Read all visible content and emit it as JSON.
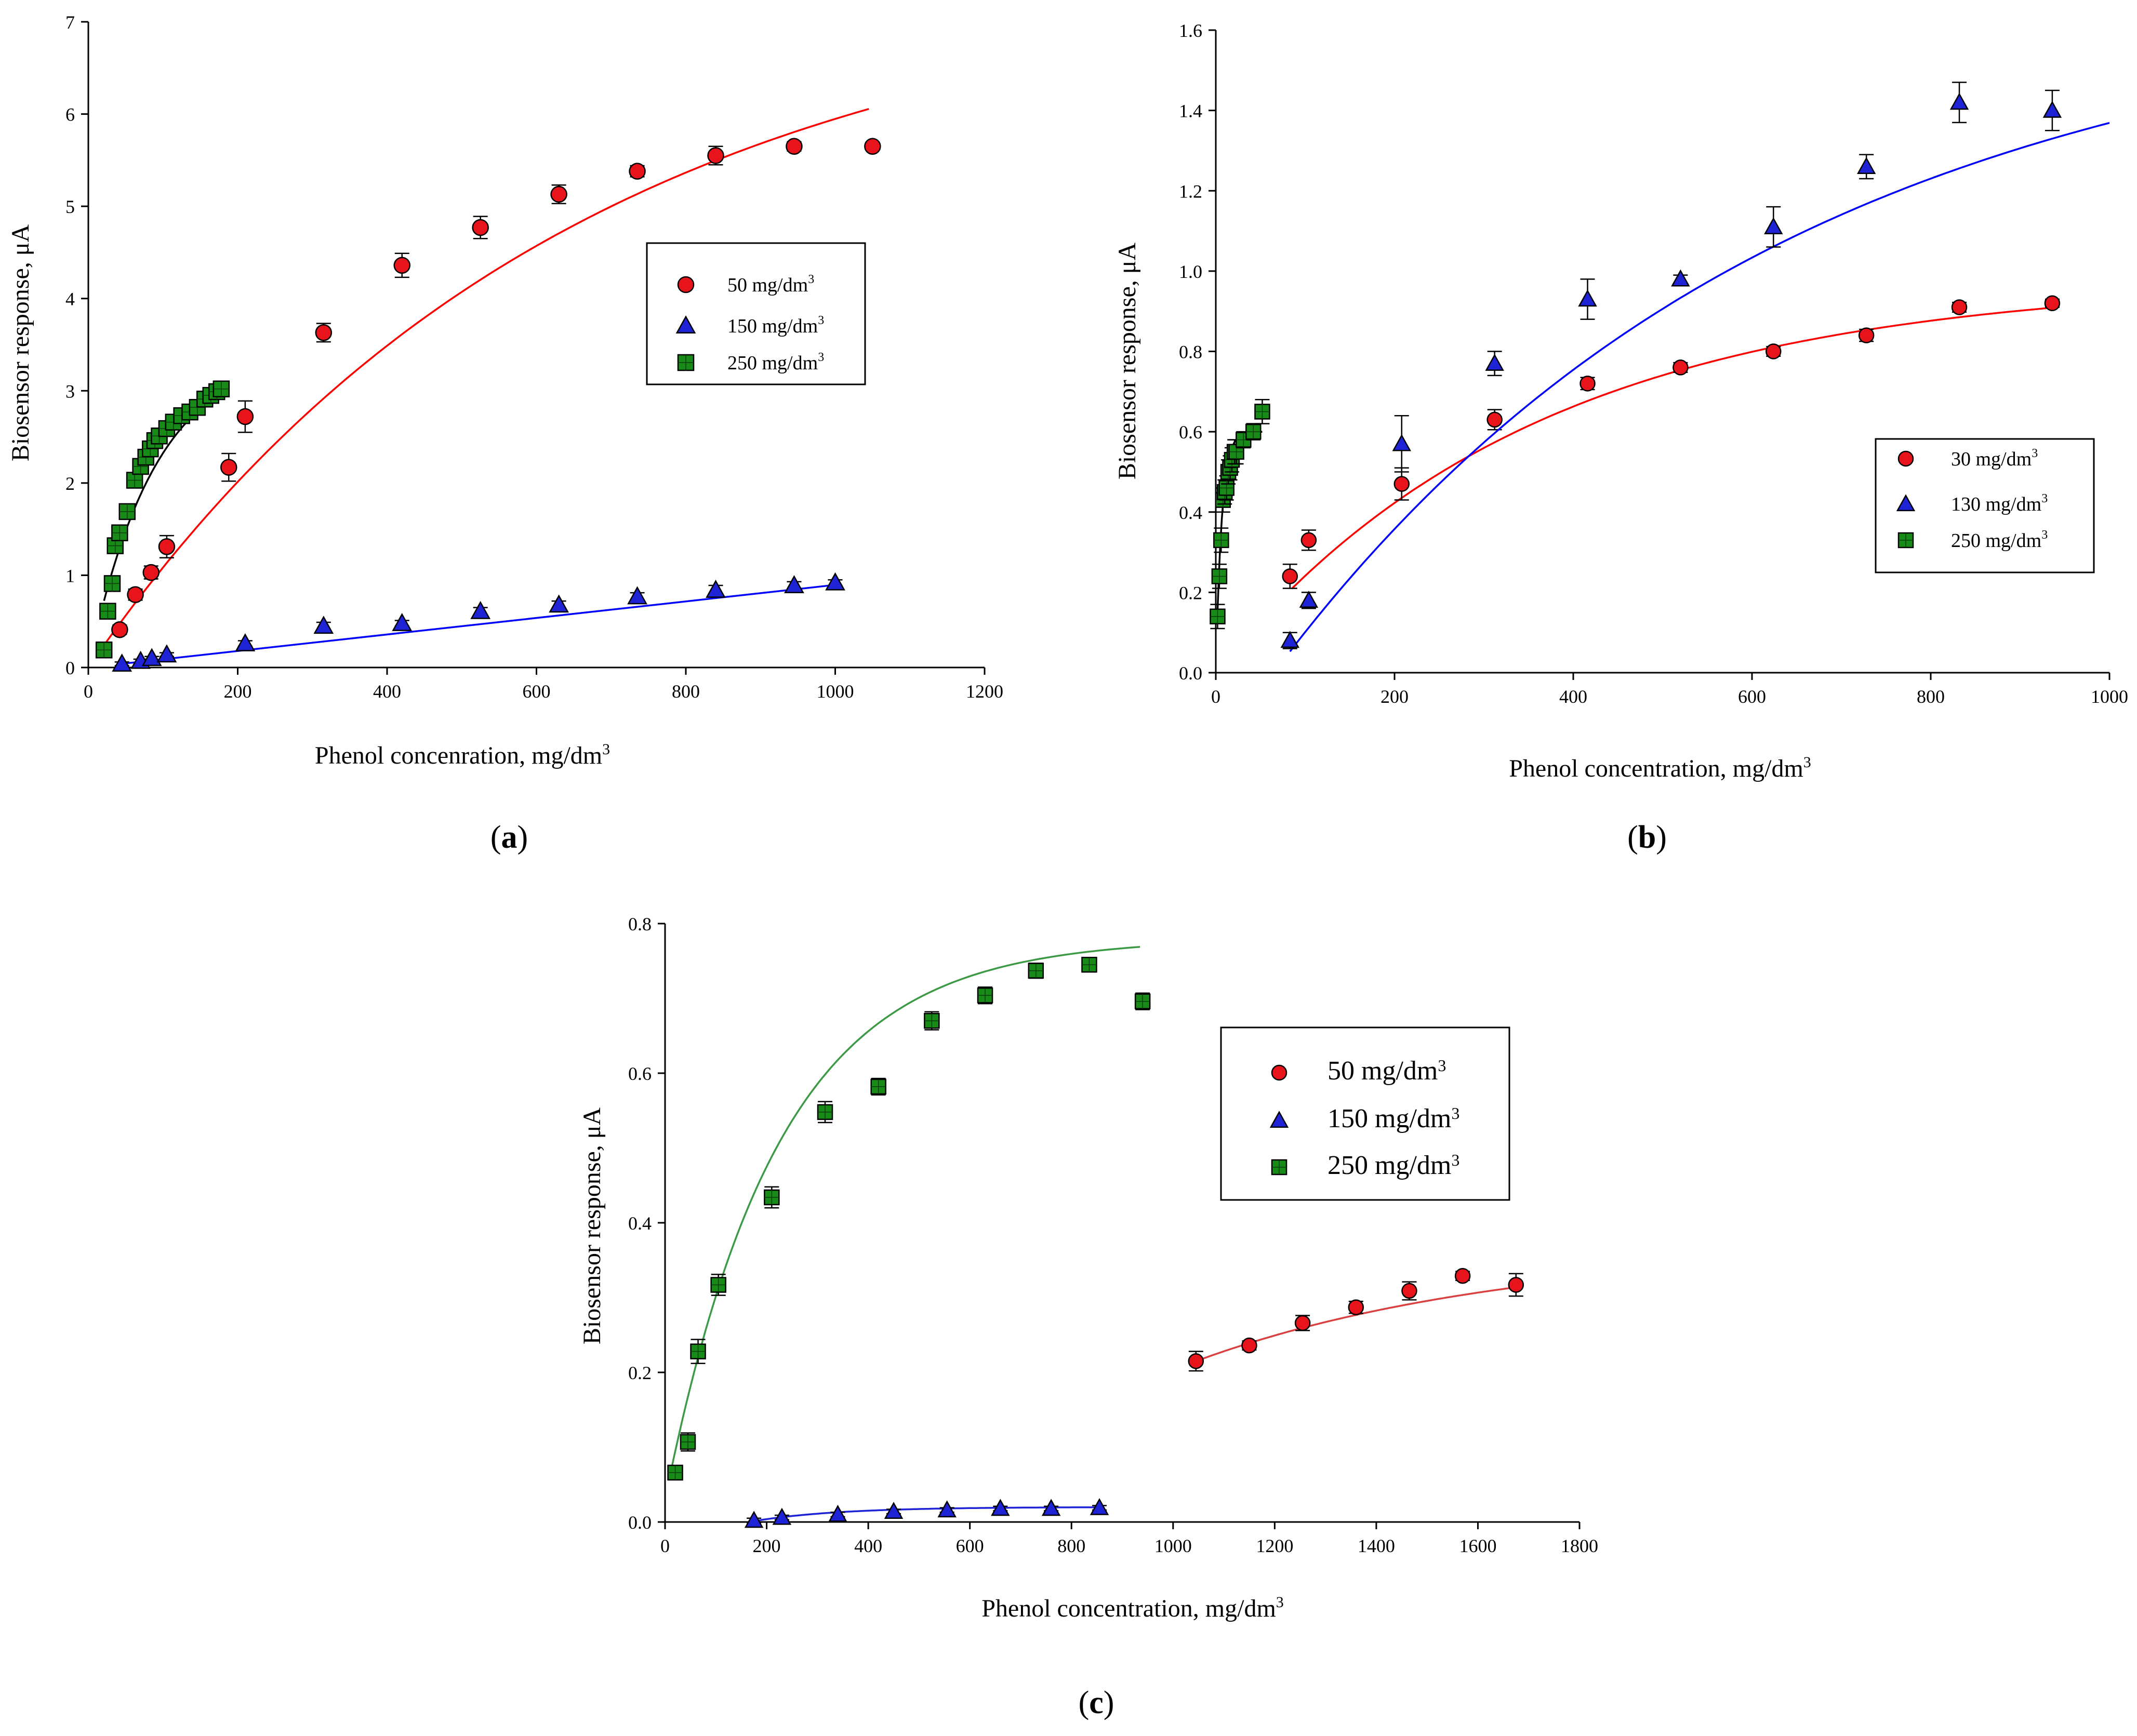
{
  "chart_data": [
    {
      "type": "scatter",
      "panel_label": "a",
      "xlabel": "Phenol concenration, mg/dm",
      "xlabel_sup": "3",
      "ylabel": "Biosensor response, μA",
      "xlim": [
        0,
        1200
      ],
      "ylim": [
        0,
        7
      ],
      "xticks": [
        "0",
        "200",
        "400",
        "600",
        "800",
        "1000",
        "1200"
      ],
      "yticks": [
        "0",
        "1",
        "2",
        "3",
        "4",
        "5",
        "6",
        "7"
      ],
      "legend_position": "middle-right",
      "series": [
        {
          "name": "50 mg/dm",
          "sup": "3",
          "marker": "circle",
          "color": "#e8141c",
          "x": [
            42,
            63,
            84,
            105,
            188,
            210,
            315,
            420,
            525,
            630,
            735,
            840,
            945,
            1050
          ],
          "y": [
            0.41,
            0.79,
            1.03,
            1.31,
            2.17,
            2.72,
            3.63,
            4.36,
            4.77,
            5.13,
            5.38,
            5.55,
            5.65,
            5.65
          ],
          "err": [
            0.05,
            0.06,
            0.07,
            0.12,
            0.15,
            0.17,
            0.1,
            0.13,
            0.12,
            0.1,
            0.06,
            0.1,
            0.05,
            0.04
          ],
          "fit": {
            "form": "a*(1-exp(-b*x))",
            "a": 7.55,
            "b": 0.00155,
            "x_range": [
              20,
              1045
            ],
            "color": "#ff0000"
          }
        },
        {
          "name": "150 mg/dm",
          "sup": "3",
          "marker": "triangle",
          "color": "#1f23d6",
          "x": [
            45,
            70,
            85,
            105,
            210,
            315,
            420,
            525,
            630,
            735,
            840,
            945,
            1000
          ],
          "y": [
            0.04,
            0.07,
            0.1,
            0.14,
            0.26,
            0.45,
            0.48,
            0.61,
            0.68,
            0.77,
            0.84,
            0.89,
            0.92
          ],
          "err": [
            0.02,
            0.02,
            0.02,
            0.02,
            0.03,
            0.04,
            0.03,
            0.04,
            0.04,
            0.04,
            0.05,
            0.04,
            0.03
          ],
          "fit": {
            "form": "linear",
            "points": [
              [
                45,
                0.04
              ],
              [
                1005,
                0.9
              ]
            ],
            "color": "#0000ff"
          }
        },
        {
          "name": "250 mg/dm",
          "sup": "3",
          "marker": "square",
          "color": "#178a17",
          "x": [
            21,
            26,
            32,
            36,
            42,
            52,
            62,
            70,
            77,
            83,
            89,
            95,
            105,
            114,
            125,
            136,
            146,
            156,
            164,
            172,
            178
          ],
          "y": [
            0.19,
            0.61,
            0.91,
            1.32,
            1.46,
            1.69,
            2.03,
            2.18,
            2.28,
            2.37,
            2.46,
            2.51,
            2.59,
            2.66,
            2.73,
            2.77,
            2.82,
            2.91,
            2.95,
            2.99,
            3.02
          ],
          "err": [
            0.04,
            0.05,
            0.05,
            0.05,
            0.05,
            0.05,
            0.05,
            0.05,
            0.05,
            0.05,
            0.05,
            0.05,
            0.05,
            0.05,
            0.05,
            0.05,
            0.05,
            0.05,
            0.05,
            0.05,
            0.05
          ],
          "fit": {
            "form": "a*(1-exp(-b*x))",
            "a": 3.45,
            "b": 0.0112,
            "x_range": [
              21,
              178
            ],
            "color": "#000000"
          }
        }
      ]
    },
    {
      "type": "scatter",
      "panel_label": "b",
      "xlabel": "Phenol concentration, mg/dm",
      "xlabel_sup": "3",
      "ylabel": "Biosensor response, μA",
      "xlim": [
        0,
        1000
      ],
      "ylim": [
        0,
        1.6
      ],
      "xticks": [
        "0",
        "200",
        "400",
        "600",
        "800",
        "1000"
      ],
      "yticks": [
        "0.0",
        "0.2",
        "0.4",
        "0.6",
        "0.8",
        "1.0",
        "1.2",
        "1.4",
        "1.6"
      ],
      "legend_position": "middle-right",
      "series": [
        {
          "name": "30 mg/dm",
          "sup": "3",
          "marker": "circle",
          "color": "#e8141c",
          "x": [
            83,
            104,
            208,
            312,
            416,
            520,
            624,
            728,
            832,
            936
          ],
          "y": [
            0.24,
            0.33,
            0.47,
            0.63,
            0.72,
            0.76,
            0.8,
            0.84,
            0.91,
            0.92
          ],
          "err": [
            0.03,
            0.025,
            0.04,
            0.025,
            0.015,
            0.012,
            0.012,
            0.015,
            0.012,
            0.01
          ],
          "fit": {
            "form": "a*(1-exp(-b*x))",
            "a": 0.978,
            "b": 0.00283,
            "x_range": [
              85,
              940
            ],
            "color": "#ff0000"
          }
        },
        {
          "name": "130 mg/dm",
          "sup": "3",
          "marker": "triangle",
          "color": "#1f23d6",
          "x": [
            83,
            104,
            208,
            312,
            416,
            520,
            624,
            728,
            832,
            936
          ],
          "y": [
            0.08,
            0.18,
            0.57,
            0.77,
            0.93,
            0.98,
            1.11,
            1.26,
            1.42,
            1.4
          ],
          "err": [
            0.02,
            0.02,
            0.07,
            0.03,
            0.05,
            0.01,
            0.05,
            0.03,
            0.05,
            0.05
          ],
          "fit": {
            "form": "a*(1-exp(-b*(x-c)))",
            "a": 1.7,
            "b": 0.00175,
            "c": 65,
            "x_range": [
              83,
              1000
            ],
            "color": "#0000ff"
          }
        },
        {
          "name": "250 mg/dm",
          "sup": "3",
          "marker": "square",
          "color": "#178a17",
          "x": [
            2,
            4,
            6,
            8,
            10,
            12,
            14,
            16,
            18,
            21,
            23,
            31,
            42,
            52
          ],
          "y": [
            0.14,
            0.24,
            0.33,
            0.43,
            0.45,
            0.46,
            0.5,
            0.51,
            0.53,
            0.55,
            0.55,
            0.58,
            0.6,
            0.65
          ],
          "err": [
            0.03,
            0.03,
            0.03,
            0.03,
            0.03,
            0.03,
            0.03,
            0.03,
            0.03,
            0.03,
            0.03,
            0.02,
            0.02,
            0.03
          ],
          "fit": {
            "form": "a*(1-exp(-b*x))",
            "a": 0.6,
            "b": 0.15,
            "x_range": [
              2,
              52
            ],
            "color": "#000000"
          }
        }
      ]
    },
    {
      "type": "scatter",
      "panel_label": "c",
      "xlabel": "Phenol concentration, mg/dm",
      "xlabel_sup": "3",
      "ylabel": "Biosensor response, μA",
      "xlim": [
        0,
        1800
      ],
      "ylim": [
        0,
        0.8
      ],
      "xticks": [
        "0",
        "200",
        "400",
        "600",
        "800",
        "1000",
        "1200",
        "1400",
        "1600",
        "1800"
      ],
      "yticks": [
        "0.0",
        "0.2",
        "0.4",
        "0.6",
        "0.8"
      ],
      "legend_position": "top-right",
      "series": [
        {
          "name": "50 mg/dm",
          "sup": "3",
          "marker": "circle",
          "color": "#e8141c",
          "x": [
            1045,
            1150,
            1255,
            1360,
            1465,
            1570,
            1675
          ],
          "y": [
            0.215,
            0.236,
            0.266,
            0.287,
            0.309,
            0.329,
            0.317
          ],
          "err": [
            0.013,
            0.006,
            0.01,
            0.008,
            0.012,
            0.006,
            0.015
          ],
          "fit": {
            "form": "a - b*exp(-c*(x-1045))",
            "a": 0.3695,
            "b": 0.1545,
            "c": 0.00162,
            "x_range": [
              1045,
              1675
            ],
            "color": "#d9403f"
          }
        },
        {
          "name": "150 mg/dm",
          "sup": "3",
          "marker": "triangle",
          "color": "#1f23d6",
          "x": [
            175,
            230,
            340,
            450,
            555,
            660,
            760,
            855
          ],
          "y": [
            0.002,
            0.006,
            0.01,
            0.014,
            0.016,
            0.018,
            0.018,
            0.019
          ],
          "err": [
            0.003,
            0.003,
            0.003,
            0.003,
            0.003,
            0.003,
            0.003,
            0.003
          ],
          "fit": {
            "form": "a*(1-exp(-b*(x-c)))",
            "a": 0.02,
            "b": 0.006,
            "c": 165,
            "x_range": [
              165,
              860
            ],
            "color": "#1f23d6"
          }
        },
        {
          "name": "250 mg/dm",
          "sup": "3",
          "marker": "square",
          "color": "#178a17",
          "x": [
            20,
            45,
            65,
            105,
            210,
            315,
            420,
            525,
            630,
            730,
            835,
            940
          ],
          "y": [
            0.066,
            0.107,
            0.228,
            0.317,
            0.434,
            0.548,
            0.582,
            0.67,
            0.704,
            0.737,
            0.745,
            0.696
          ],
          "err": [
            0.005,
            0.012,
            0.016,
            0.014,
            0.014,
            0.014,
            0.011,
            0.012,
            0.011,
            0.01,
            0.007,
            0.011
          ],
          "fit": {
            "form": "a - b*exp(-c*x)",
            "a": 0.78,
            "b": 0.75,
            "c": 0.0045,
            "x_range": [
              10,
              935
            ],
            "color": "#3c9a46"
          }
        }
      ]
    }
  ]
}
